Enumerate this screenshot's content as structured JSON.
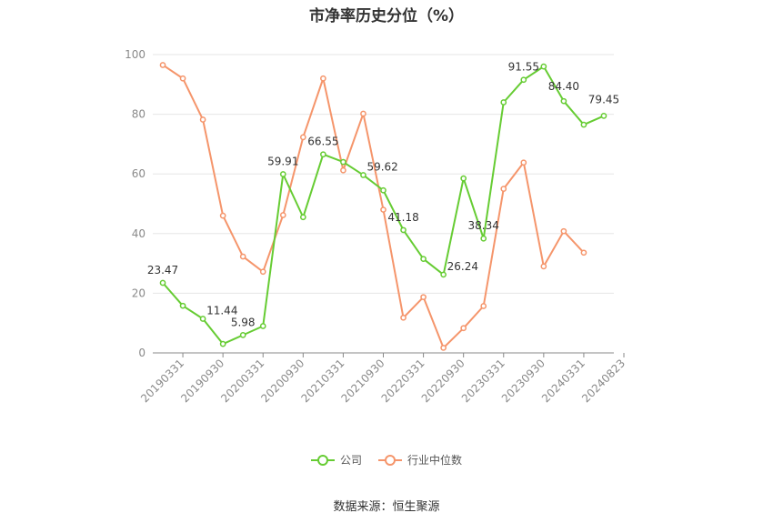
{
  "title": "市净率历史分位（%）",
  "source": "数据来源：恒生聚源",
  "colors": {
    "company": "#66cc33",
    "industry": "#f5956b"
  },
  "legend": {
    "company": "公司",
    "industry": "行业中位数"
  },
  "chart_data": {
    "type": "line",
    "title": "市净率历史分位（%）",
    "ylim": [
      0,
      100
    ],
    "yticks": [
      0,
      20,
      40,
      60,
      80,
      100
    ],
    "xticklabels": [
      "20190331",
      "20190930",
      "20200331",
      "20200930",
      "20210331",
      "20210930",
      "20220331",
      "20220930",
      "20230331",
      "20230930",
      "20240331",
      "20240823"
    ],
    "x_count": 23,
    "grid": true,
    "legend_position": "bottom",
    "series": [
      {
        "name": "公司",
        "values": [
          23.47,
          15.8,
          11.44,
          3.0,
          5.98,
          9.0,
          59.91,
          45.5,
          66.55,
          64.0,
          59.62,
          54.5,
          41.18,
          31.5,
          26.24,
          58.5,
          38.34,
          84.0,
          91.55,
          96.0,
          84.4,
          76.5,
          79.45
        ],
        "labels": {
          "0": "23.47",
          "2": "11.44",
          "4": "5.98",
          "6": "59.91",
          "8": "66.55",
          "10": "59.62",
          "12": "41.18",
          "14": "26.24",
          "16": "38.34",
          "18": "91.55",
          "20": "84.40",
          "22": "79.45"
        }
      },
      {
        "name": "行业中位数",
        "values": [
          96.5,
          92.0,
          78.2,
          46.0,
          32.3,
          27.2,
          46.2,
          72.3,
          92.0,
          61.2,
          80.2,
          48.0,
          11.8,
          18.7,
          1.7,
          8.3,
          15.7,
          55.0,
          63.8,
          29.0,
          40.8,
          33.6,
          null
        ]
      }
    ]
  }
}
